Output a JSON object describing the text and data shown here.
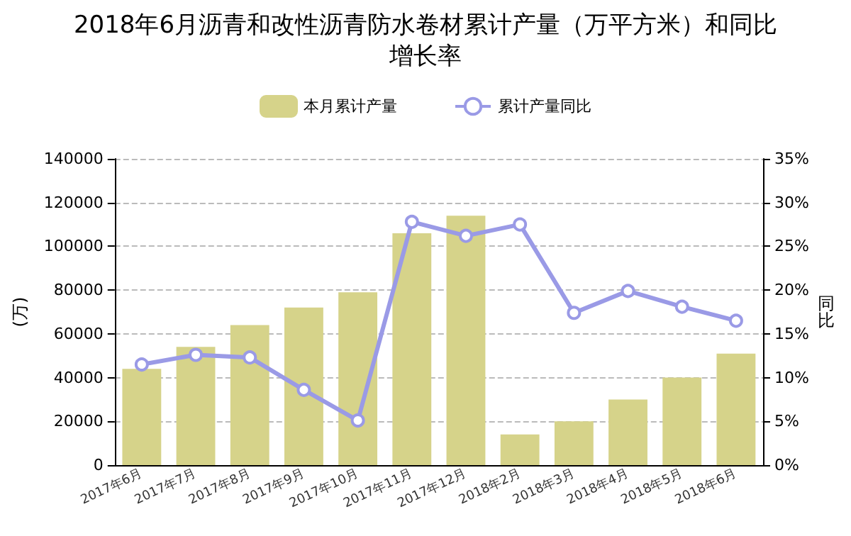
{
  "chart_data": {
    "type": "bar",
    "title": "2018年6月沥青和改性沥青防水卷材累计产量（万平方米）和同比增长率",
    "ylabel": "(万)",
    "y2label": "同比",
    "categories": [
      "2017年6月",
      "2017年7月",
      "2017年8月",
      "2017年9月",
      "2017年10月",
      "2017年11月",
      "2017年12月",
      "2018年2月",
      "2018年3月",
      "2018年4月",
      "2018年5月",
      "2018年6月"
    ],
    "series": [
      {
        "name": "本月累计产量",
        "color": "#d6d38a",
        "values": [
          44000,
          54000,
          64000,
          72000,
          79000,
          106000,
          114000,
          14000,
          20000,
          30000,
          40000,
          51000
        ]
      },
      {
        "name": "累计产量同比",
        "type": "line",
        "axis": "y2",
        "color": "#9a9ae6",
        "values": [
          11.5,
          12.6,
          12.3,
          8.6,
          5.1,
          27.8,
          26.2,
          27.5,
          17.4,
          19.9,
          18.1,
          16.5
        ]
      }
    ],
    "ylim": [
      0,
      140000
    ],
    "yticks": [
      0,
      20000,
      40000,
      60000,
      80000,
      100000,
      120000,
      140000
    ],
    "y2lim": [
      0,
      35
    ],
    "y2ticks": [
      {
        "value": 0,
        "label": "0%"
      },
      {
        "value": 5,
        "label": "5%"
      },
      {
        "value": 10,
        "label": "10%"
      },
      {
        "value": 15,
        "label": "15%"
      },
      {
        "value": 20,
        "label": "20%"
      },
      {
        "value": 25,
        "label": "25%"
      },
      {
        "value": 30,
        "label": "30%"
      },
      {
        "value": 35,
        "label": "35%"
      }
    ],
    "grid": "y",
    "legend": "top",
    "marker": "circle",
    "line_style": "solid"
  }
}
